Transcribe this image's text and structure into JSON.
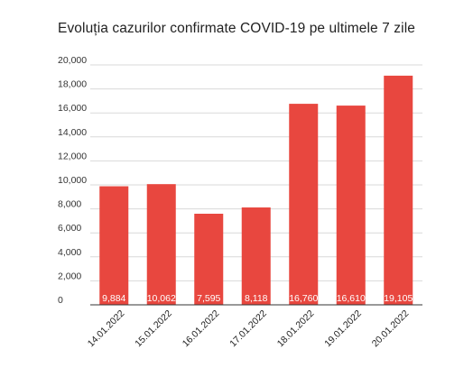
{
  "chart_data": {
    "type": "bar",
    "title": "Evoluția cazurilor confirmate COVID-19 pe ultimele 7 zile",
    "xlabel": "",
    "ylabel": "",
    "categories": [
      "14.01.2022",
      "15.01.2022",
      "16.01.2022",
      "17.01.2022",
      "18.01.2022",
      "19.01.2022",
      "20.01.2022"
    ],
    "values": [
      9884,
      10062,
      7595,
      8118,
      16760,
      16610,
      19105
    ],
    "data_labels": [
      "9,884",
      "10,062",
      "7,595",
      "8,118",
      "16,760",
      "16,610",
      "19,105"
    ],
    "y_ticks": [
      0,
      2000,
      4000,
      6000,
      8000,
      10000,
      12000,
      14000,
      16000,
      18000,
      20000
    ],
    "y_tick_labels": [
      "0",
      "2,000",
      "4,000",
      "6,000",
      "8,000",
      "10,000",
      "12,000",
      "14,000",
      "16,000",
      "18,000",
      "20,000"
    ],
    "ylim": [
      0,
      20000
    ],
    "grid": true,
    "legend": "none",
    "bar_color": "#e8473f",
    "grid_color": "#d9d9d9",
    "axis_color": "#333333"
  }
}
